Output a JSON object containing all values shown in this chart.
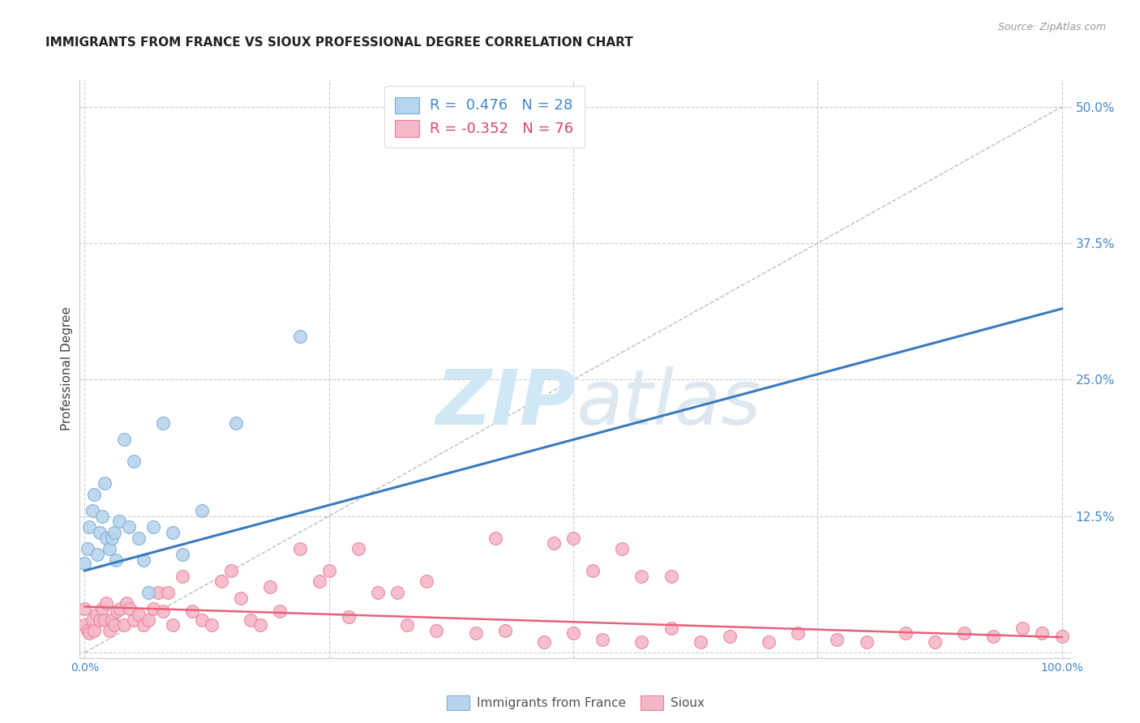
{
  "title": "IMMIGRANTS FROM FRANCE VS SIOUX PROFESSIONAL DEGREE CORRELATION CHART",
  "source": "Source: ZipAtlas.com",
  "ylabel": "Professional Degree",
  "legend_label1": "Immigrants from France",
  "legend_label2": "Sioux",
  "R1": 0.476,
  "N1": 28,
  "R2": -0.352,
  "N2": 76,
  "color_blue_fill": "#b8d4ed",
  "color_blue_edge": "#7aadd6",
  "color_pink_fill": "#f5b8c8",
  "color_pink_edge": "#e8809a",
  "color_line_blue": "#3a7abf",
  "color_line_pink": "#e8607a",
  "color_diag": "#bbbbbb",
  "color_text_blue": "#4488cc",
  "color_text_pink": "#dd4466",
  "color_grid": "#cccccc",
  "watermark_color": "#d0e8f5",
  "ylim_min": -0.005,
  "ylim_max": 0.525,
  "xlim_min": -0.005,
  "xlim_max": 1.01,
  "yticks": [
    0.0,
    0.125,
    0.25,
    0.375,
    0.5
  ],
  "ytick_labels_right": [
    "",
    "12.5%",
    "25.0%",
    "37.5%",
    "50.0%"
  ],
  "blue_scatter_x": [
    0.0,
    0.003,
    0.005,
    0.008,
    0.01,
    0.013,
    0.015,
    0.018,
    0.02,
    0.022,
    0.025,
    0.028,
    0.03,
    0.032,
    0.035,
    0.04,
    0.045,
    0.05,
    0.055,
    0.06,
    0.065,
    0.07,
    0.08,
    0.09,
    0.1,
    0.12,
    0.155,
    0.22
  ],
  "blue_scatter_y": [
    0.082,
    0.095,
    0.115,
    0.13,
    0.145,
    0.09,
    0.11,
    0.125,
    0.155,
    0.105,
    0.095,
    0.105,
    0.11,
    0.085,
    0.12,
    0.195,
    0.115,
    0.175,
    0.105,
    0.085,
    0.055,
    0.115,
    0.21,
    0.11,
    0.09,
    0.13,
    0.21,
    0.29
  ],
  "pink_scatter_x": [
    0.0,
    0.0,
    0.003,
    0.005,
    0.008,
    0.01,
    0.012,
    0.015,
    0.018,
    0.02,
    0.022,
    0.025,
    0.028,
    0.03,
    0.033,
    0.036,
    0.04,
    0.043,
    0.046,
    0.05,
    0.055,
    0.06,
    0.065,
    0.07,
    0.075,
    0.08,
    0.085,
    0.09,
    0.1,
    0.11,
    0.12,
    0.13,
    0.14,
    0.15,
    0.16,
    0.17,
    0.18,
    0.19,
    0.2,
    0.22,
    0.24,
    0.27,
    0.3,
    0.33,
    0.36,
    0.4,
    0.43,
    0.47,
    0.5,
    0.53,
    0.57,
    0.6,
    0.63,
    0.66,
    0.7,
    0.73,
    0.77,
    0.8,
    0.84,
    0.87,
    0.9,
    0.93,
    0.96,
    0.98,
    1.0,
    0.42,
    0.48,
    0.52,
    0.57,
    0.25,
    0.28,
    0.32,
    0.35,
    0.5,
    0.55,
    0.6
  ],
  "pink_scatter_y": [
    0.025,
    0.04,
    0.02,
    0.018,
    0.03,
    0.02,
    0.035,
    0.03,
    0.04,
    0.03,
    0.045,
    0.02,
    0.03,
    0.025,
    0.038,
    0.04,
    0.025,
    0.045,
    0.04,
    0.03,
    0.035,
    0.025,
    0.03,
    0.04,
    0.055,
    0.038,
    0.055,
    0.025,
    0.07,
    0.038,
    0.03,
    0.025,
    0.065,
    0.075,
    0.05,
    0.03,
    0.025,
    0.06,
    0.038,
    0.095,
    0.065,
    0.033,
    0.055,
    0.025,
    0.02,
    0.018,
    0.02,
    0.01,
    0.018,
    0.012,
    0.01,
    0.022,
    0.01,
    0.015,
    0.01,
    0.018,
    0.012,
    0.01,
    0.018,
    0.01,
    0.018,
    0.015,
    0.022,
    0.018,
    0.015,
    0.105,
    0.1,
    0.075,
    0.07,
    0.075,
    0.095,
    0.055,
    0.065,
    0.105,
    0.095,
    0.07
  ],
  "blue_line_x": [
    0.0,
    1.0
  ],
  "blue_line_y_start": 0.075,
  "blue_line_slope": 0.24,
  "pink_line_x": [
    0.0,
    1.0
  ],
  "pink_line_y_start": 0.042,
  "pink_line_slope": -0.028
}
